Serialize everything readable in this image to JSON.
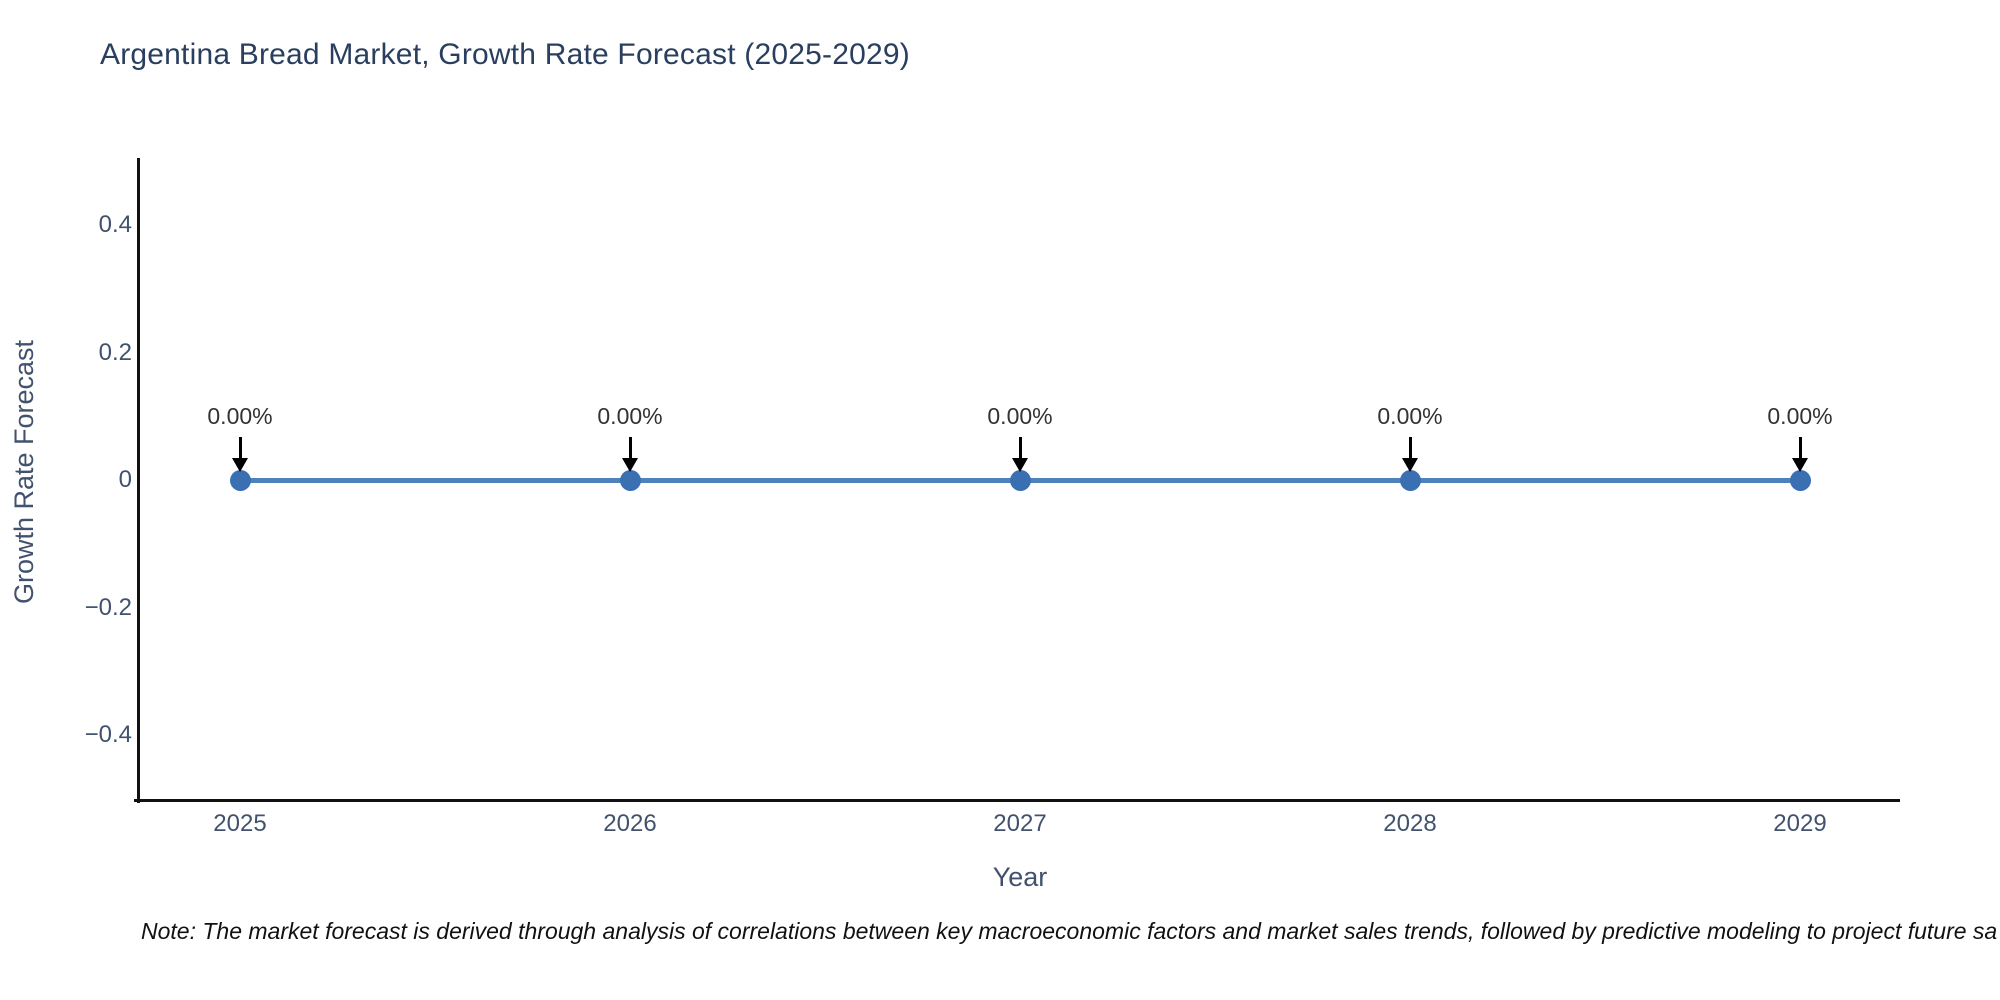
{
  "title": "Argentina Bread Market, Growth Rate Forecast (2025-2029)",
  "note": "Note: The market forecast is derived through analysis of correlations between key macroeconomic factors and market sales trends, followed by predictive modeling to project future sa",
  "chart_data": {
    "type": "line",
    "title": "Argentina Bread Market, Growth Rate Forecast (2025-2029)",
    "xlabel": "Year",
    "ylabel": "Growth Rate Forecast",
    "categories": [
      "2025",
      "2026",
      "2027",
      "2028",
      "2029"
    ],
    "series": [
      {
        "name": "Growth Rate Forecast",
        "values": [
          0,
          0,
          0,
          0,
          0
        ]
      }
    ],
    "point_labels": [
      "0.00%",
      "0.00%",
      "0.00%",
      "0.00%",
      "0.00%"
    ],
    "yticks": [
      0.4,
      0.2,
      0,
      -0.2,
      -0.4
    ],
    "ylim": [
      -0.5,
      0.5
    ],
    "grid": false,
    "legend": "none",
    "annotation_arrows": "down-arrow-to-each-point",
    "colors": {
      "line": "#4d83ba",
      "marker": "#3a70b2",
      "axis": "#111111",
      "tick_label": "#42526e",
      "title": "#2a3f5f",
      "annotation": "#333333",
      "note": "#111111",
      "background": "#ffffff"
    }
  }
}
